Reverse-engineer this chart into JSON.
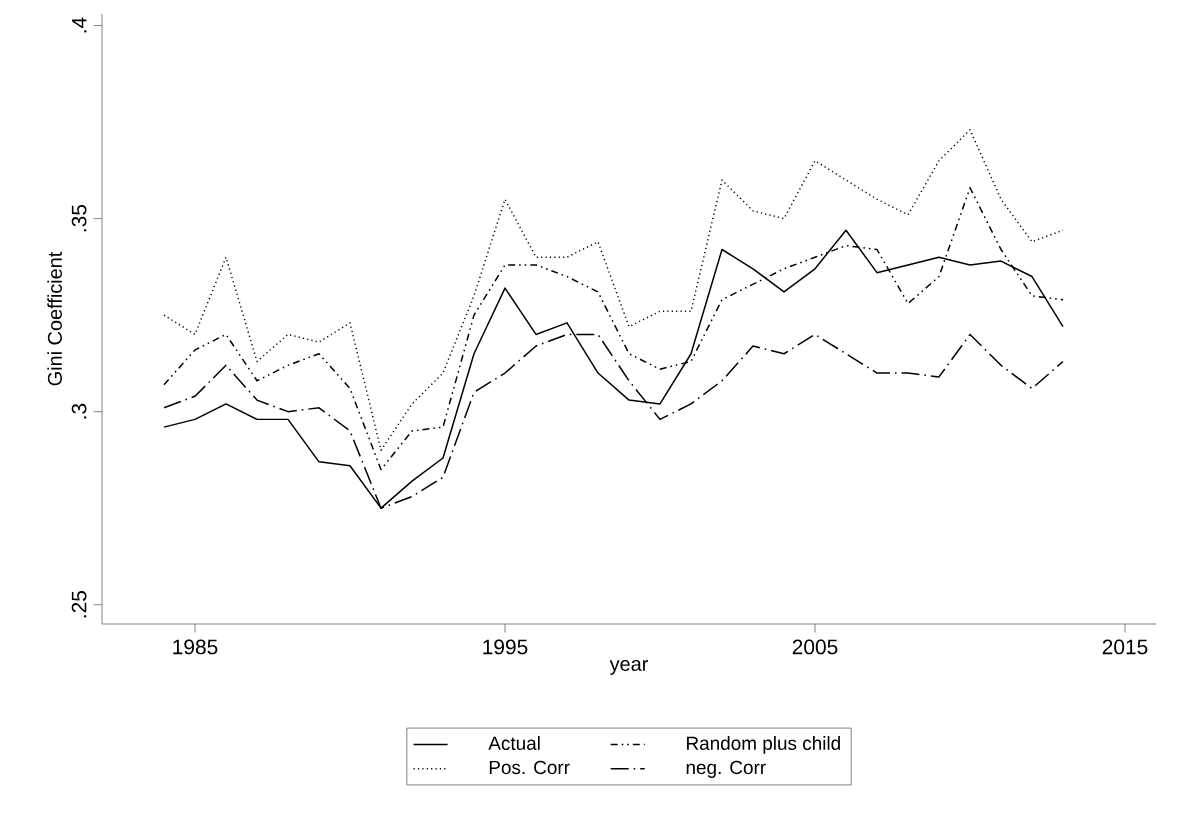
{
  "chart_data": {
    "type": "line",
    "xlabel": "year",
    "ylabel": "Gini Coefficient",
    "x": [
      1984,
      1985,
      1986,
      1987,
      1988,
      1989,
      1990,
      1991,
      1992,
      1993,
      1994,
      1995,
      1996,
      1997,
      1998,
      1999,
      2000,
      2001,
      2002,
      2003,
      2004,
      2005,
      2006,
      2007,
      2008,
      2009,
      2010,
      2011,
      2012,
      2013
    ],
    "series": [
      {
        "name": "Actual",
        "color": "#000000",
        "line_style": "solid",
        "values": [
          0.296,
          0.298,
          0.302,
          0.298,
          0.298,
          0.287,
          0.286,
          0.275,
          0.282,
          0.288,
          0.315,
          0.332,
          0.32,
          0.323,
          0.31,
          0.303,
          0.302,
          0.315,
          0.342,
          0.337,
          0.331,
          0.337,
          0.347,
          0.336,
          0.338,
          0.34,
          0.338,
          0.339,
          0.335,
          0.322
        ]
      },
      {
        "name": "Random plus child",
        "color": "#000000",
        "line_style": "dashdotdot",
        "values": [
          0.307,
          0.316,
          0.32,
          0.308,
          0.312,
          0.315,
          0.306,
          0.285,
          0.295,
          0.296,
          0.325,
          0.338,
          0.338,
          0.335,
          0.331,
          0.315,
          0.311,
          0.313,
          0.329,
          0.333,
          0.337,
          0.34,
          0.343,
          0.342,
          0.328,
          0.335,
          0.358,
          0.342,
          0.33,
          0.329
        ]
      },
      {
        "name": "Pos. Corr",
        "color": "#000000",
        "line_style": "dotted",
        "values": [
          0.325,
          0.32,
          0.34,
          0.313,
          0.32,
          0.318,
          0.323,
          0.29,
          0.302,
          0.31,
          0.33,
          0.355,
          0.34,
          0.34,
          0.344,
          0.322,
          0.326,
          0.326,
          0.36,
          0.352,
          0.35,
          0.365,
          0.36,
          0.355,
          0.351,
          0.365,
          0.373,
          0.355,
          0.344,
          0.347
        ]
      },
      {
        "name": "neg. Corr",
        "color": "#000000",
        "line_style": "longdashdot",
        "values": [
          0.301,
          0.304,
          0.312,
          0.303,
          0.3,
          0.301,
          0.295,
          0.275,
          0.278,
          0.283,
          0.305,
          0.31,
          0.317,
          0.32,
          0.32,
          0.308,
          0.298,
          0.302,
          0.308,
          0.317,
          0.315,
          0.32,
          0.315,
          0.31,
          0.31,
          0.309,
          0.32,
          0.312,
          0.306,
          0.313
        ]
      }
    ],
    "xlim": [
      1982,
      2016
    ],
    "ylim": [
      0.245,
      0.403
    ],
    "xticks": [
      1985,
      1995,
      2005,
      2015
    ],
    "yticks": [
      {
        "value": 0.25,
        "label": ".25"
      },
      {
        "value": 0.3,
        "label": ".3"
      },
      {
        "value": 0.35,
        "label": ".35"
      },
      {
        "value": 0.4,
        "label": ".4"
      }
    ],
    "grid": false,
    "legend": "bottom",
    "marker": "none"
  }
}
